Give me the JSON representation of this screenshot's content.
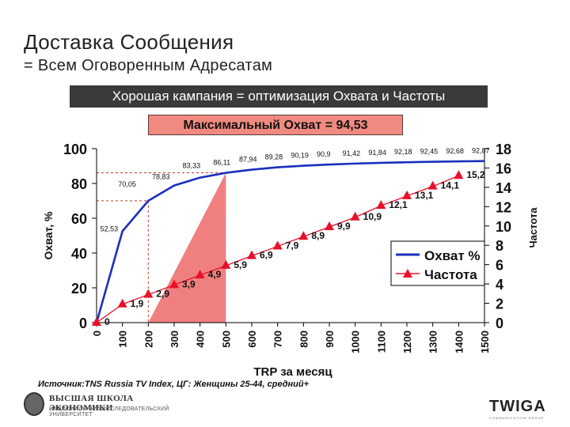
{
  "header": {
    "title": "Доставка Сообщения",
    "subtitle": "= Всем Оговоренным Адресатам"
  },
  "banner": "Хорошая кампания = оптимизация Охвата и Частоты",
  "max_reach_label": "Максимальный Охват = 94,53",
  "source": "Источник:TNS Russia TV Index, ЦГ: Женщины 25-44, средний+",
  "logos": {
    "hse_name": "ВЫСШАЯ ШКОЛА ЭКОНОМИКИ",
    "hse_sub": "НАЦИОНАЛЬНЫЙ ИССЛЕДОВАТЕЛЬСКИЙ УНИВЕРСИТЕТ",
    "twiga": "TWIGA",
    "twiga_sub": "COMMUNICATION GROUP"
  },
  "chart_data": {
    "type": "line",
    "x": [
      0,
      100,
      200,
      300,
      400,
      500,
      600,
      700,
      800,
      900,
      1000,
      1100,
      1200,
      1300,
      1400,
      1500
    ],
    "x_tick_labels": [
      "0",
      "100",
      "200",
      "300",
      "400",
      "500",
      "600",
      "700",
      "800",
      "900",
      "1000",
      "1100",
      "1200",
      "1300",
      "1400",
      "1500"
    ],
    "xlabel": "TRP за месяц",
    "ylabel_left": "Охват, %",
    "ylabel_right": "Частота",
    "ylim_left": [
      0,
      100
    ],
    "ylim_right": [
      0,
      18
    ],
    "yticks_left": [
      "0",
      "20",
      "40",
      "60",
      "80",
      "100"
    ],
    "yticks_right": [
      "0",
      "2",
      "4",
      "6",
      "8",
      "10",
      "12",
      "14",
      "16",
      "18"
    ],
    "series": [
      {
        "name": "Охват %",
        "axis": "left",
        "color": "#1a2fbf",
        "values": [
          0,
          52.53,
          70.05,
          78.83,
          83.33,
          86.11,
          87.94,
          89.28,
          90.19,
          90.9,
          91.42,
          91.84,
          92.18,
          92.45,
          92.68,
          92.87
        ],
        "labels": [
          "",
          "52,53",
          "70,05",
          "78,83",
          "83,33",
          "86,11",
          "87,94",
          "89,28",
          "90,19",
          "90,9",
          "91,42",
          "91,84",
          "92,18",
          "92,45",
          "92,68",
          "92,87"
        ]
      },
      {
        "name": "Частота",
        "axis": "right",
        "color": "#e8102a",
        "values": [
          0,
          1.9,
          2.9,
          3.9,
          4.9,
          5.9,
          6.9,
          7.9,
          8.9,
          9.9,
          10.9,
          12.1,
          13.1,
          14.1,
          15.2
        ],
        "x_values": [
          0,
          100,
          200,
          300,
          400,
          500,
          600,
          700,
          800,
          900,
          1000,
          1100,
          1200,
          1300,
          1400
        ],
        "labels": [
          "0",
          "1,9",
          "2,9",
          "3,9",
          "4,9",
          "5,9",
          "6,9",
          "7,9",
          "8,9",
          "9,9",
          "10,9",
          "12,1",
          "13,1",
          "14,1",
          "15,2"
        ]
      }
    ],
    "highlight_triangle": {
      "x_from": 200,
      "x_to": 500,
      "color": "#f08080"
    },
    "legend": [
      "Охват %",
      "Частота"
    ],
    "legend_position": "inside-right"
  }
}
